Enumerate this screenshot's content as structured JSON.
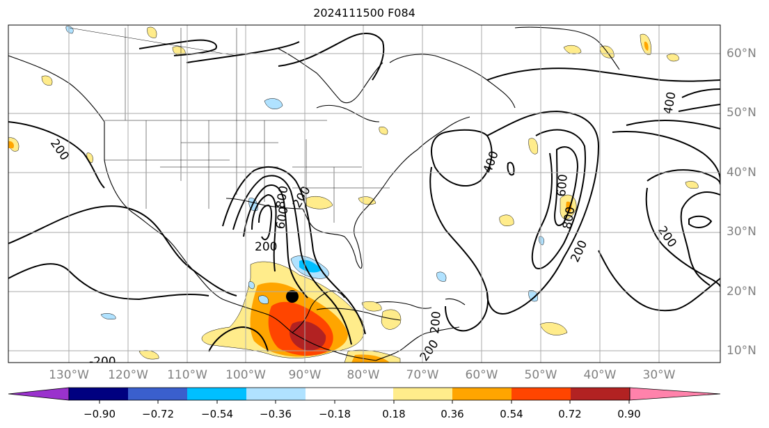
{
  "title": "2024111500 F084",
  "map": {
    "lon_labels": [
      "130°W",
      "120°W",
      "110°W",
      "100°W",
      "90°W",
      "80°W",
      "70°W",
      "60°W",
      "50°W",
      "40°W",
      "30°W"
    ],
    "lat_labels": [
      "60°N",
      "50°N",
      "40°N",
      "30°N",
      "20°N",
      "10°N"
    ],
    "contour_labels": [
      "200",
      "200",
      "400",
      "400",
      "600",
      "800",
      "200",
      "200",
      "200",
      "600",
      "800",
      "200",
      "-200",
      "200"
    ],
    "storm_marker": "low-center-dot"
  },
  "colorbar": {
    "labels": [
      "−0.90",
      "−0.72",
      "−0.54",
      "−0.36",
      "−0.18",
      "0.18",
      "0.36",
      "0.54",
      "0.72",
      "0.90"
    ],
    "colors": [
      "#9a32cd",
      "#000080",
      "#3a5fcd",
      "#00bfff",
      "#b0e2ff",
      "#ffffff",
      "#ffec8b",
      "#ffa500",
      "#ff4500",
      "#b22222",
      "#ff82ab"
    ]
  }
}
